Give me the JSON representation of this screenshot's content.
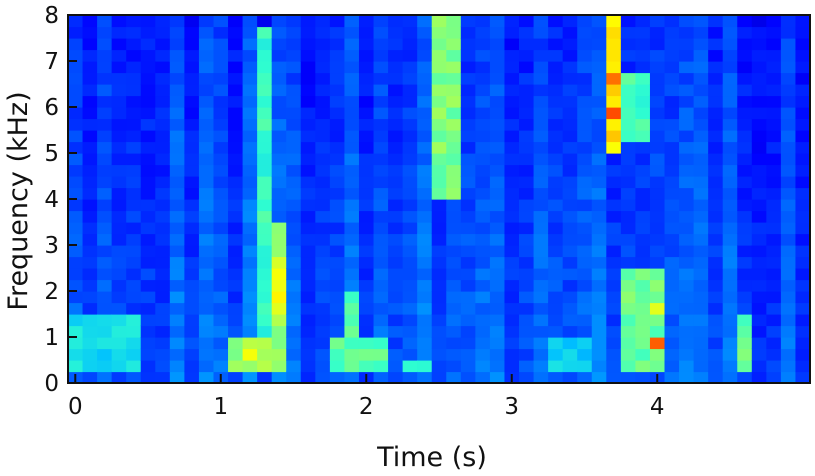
{
  "chart_data": {
    "type": "heatmap",
    "title": "",
    "xlabel": "Time (s)",
    "ylabel": "Frequency (kHz)",
    "xlim": [
      -0.05,
      5.05
    ],
    "ylim": [
      0,
      8
    ],
    "x_ticks": [
      "0",
      "1",
      "2",
      "3",
      "4"
    ],
    "y_ticks": [
      "0",
      "1",
      "2",
      "3",
      "4",
      "5",
      "6",
      "7",
      "8"
    ],
    "x_tick_values": [
      0,
      1,
      2,
      3,
      4
    ],
    "y_tick_values": [
      0,
      1,
      2,
      3,
      4,
      5,
      6,
      7,
      8
    ],
    "grid": false,
    "colormap": "jet",
    "colormap_stops": [
      "#00008f",
      "#0000ff",
      "#0060ff",
      "#00c0ff",
      "#30ffcf",
      "#9fff60",
      "#ffff00",
      "#ff9000",
      "#ff0000",
      "#800000"
    ],
    "intensity_range": [
      0,
      1
    ],
    "time_step_s": 0.1,
    "frequency_step_khz": 0.25,
    "background_level": 0.22,
    "events": [
      {
        "t": [
          1.05,
          1.35
        ],
        "f": [
          0.2,
          1.0
        ],
        "level": 0.55
      },
      {
        "t": [
          1.25,
          1.35
        ],
        "f": [
          0.5,
          7.8
        ],
        "level": 0.45
      },
      {
        "t": [
          1.35,
          1.5
        ],
        "f": [
          0.2,
          3.6
        ],
        "level": 0.55
      },
      {
        "t": [
          1.38,
          1.48
        ],
        "f": [
          1.6,
          2.8
        ],
        "level": 0.66
      },
      {
        "t": [
          1.1,
          1.2
        ],
        "f": [
          0.4,
          0.7
        ],
        "level": 0.68
      },
      {
        "t": [
          1.78,
          2.2
        ],
        "f": [
          0.2,
          1.0
        ],
        "level": 0.48
      },
      {
        "t": [
          1.85,
          2.0
        ],
        "f": [
          1.0,
          2.1
        ],
        "level": 0.48
      },
      {
        "t": [
          2.25,
          2.45
        ],
        "f": [
          0.2,
          0.6
        ],
        "level": 0.44
      },
      {
        "t": [
          2.45,
          2.7
        ],
        "f": [
          4.0,
          8.0
        ],
        "level": 0.52
      },
      {
        "t": [
          3.65,
          3.8
        ],
        "f": [
          5.0,
          8.0
        ],
        "level": 0.7
      },
      {
        "t": [
          3.68,
          3.78
        ],
        "f": [
          5.7,
          5.9
        ],
        "level": 0.8
      },
      {
        "t": [
          3.68,
          3.78
        ],
        "f": [
          6.5,
          6.7
        ],
        "level": 0.84
      },
      {
        "t": [
          3.8,
          3.92
        ],
        "f": [
          5.2,
          6.8
        ],
        "level": 0.46
      },
      {
        "t": [
          3.78,
          4.1
        ],
        "f": [
          0.3,
          2.6
        ],
        "level": 0.5
      },
      {
        "t": [
          3.92,
          4.02
        ],
        "f": [
          0.8,
          1.1
        ],
        "level": 0.8
      },
      {
        "t": [
          3.92,
          4.02
        ],
        "f": [
          1.4,
          1.8
        ],
        "level": 0.62
      },
      {
        "t": [
          4.55,
          4.68
        ],
        "f": [
          0.3,
          1.4
        ],
        "level": 0.5
      },
      {
        "t": [
          -0.05,
          0.4
        ],
        "f": [
          0.2,
          1.6
        ],
        "level": 0.38
      },
      {
        "t": [
          3.25,
          3.6
        ],
        "f": [
          0.3,
          1.0
        ],
        "level": 0.36
      }
    ]
  }
}
